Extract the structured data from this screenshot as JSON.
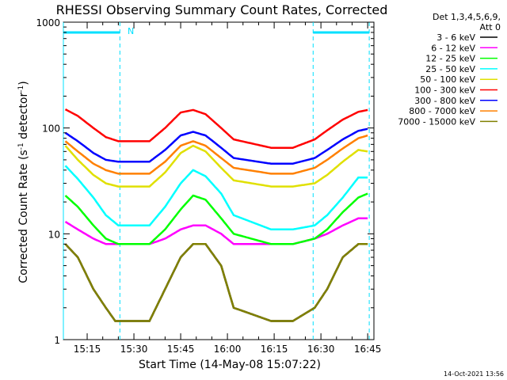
{
  "chart_data": {
    "type": "line",
    "title": "RHESSI Observing Summary Count Rates, Corrected",
    "xlabel": "Start Time (14-May-08 15:07:22)",
    "ylabel": "Corrected Count Rate (s-1 detector-1)",
    "ylabel_parts": {
      "main": "Corrected Count Rate (s",
      "sup1": "-1",
      "mid": " detector",
      "sup2": "-1",
      "end": ")"
    },
    "yscale": "log",
    "ylim": [
      1,
      1000
    ],
    "y_ticks": [
      "1",
      "10",
      "100",
      "1000"
    ],
    "xlim": [
      "15:07:22",
      "16:47:00"
    ],
    "x_ticks": [
      "15:15",
      "15:30",
      "15:45",
      "16:00",
      "16:15",
      "16:30",
      "16:45"
    ],
    "legend_header": [
      "Det 1,3,4,5,6,9,",
      "Att 0"
    ],
    "legend_placement": "right",
    "timestamp": "14-Oct-2021 13:56",
    "flag_label": "N",
    "night_markers": [
      {
        "from": "15:07:22",
        "to": "15:25:30",
        "color": "#00e0ff"
      },
      {
        "from": "16:27:30",
        "to": "16:45:30",
        "color": "#00e0ff"
      }
    ],
    "series": [
      {
        "name": "3 - 6 keV",
        "color": "#000000",
        "time": [
          "15:08",
          "15:12",
          "15:17",
          "15:21",
          "15:24",
          "15:35",
          "15:40",
          "15:45",
          "15:49",
          "15:53",
          "15:58",
          "16:02",
          "16:14",
          "16:21",
          "16:28",
          "16:32",
          "16:37",
          "16:42",
          "16:45"
        ],
        "values": [
          8,
          6,
          3,
          2,
          1.5,
          1.5,
          3,
          6,
          8,
          8,
          5,
          2,
          1.5,
          1.5,
          2,
          3,
          6,
          8,
          8
        ]
      },
      {
        "name": "6 - 12 keV",
        "color": "#ff00ff",
        "time": [
          "15:08",
          "15:12",
          "15:17",
          "15:21",
          "15:25",
          "15:35",
          "15:40",
          "15:45",
          "15:49",
          "15:53",
          "15:58",
          "16:02",
          "16:14",
          "16:21",
          "16:28",
          "16:32",
          "16:37",
          "16:42",
          "16:45"
        ],
        "values": [
          13,
          11,
          9,
          8,
          8,
          8,
          9,
          11,
          12,
          12,
          10,
          8,
          8,
          8,
          9,
          10,
          12,
          14,
          14
        ]
      },
      {
        "name": "12 - 25 keV",
        "color": "#00ff00",
        "time": [
          "15:08",
          "15:12",
          "15:17",
          "15:21",
          "15:25",
          "15:35",
          "15:40",
          "15:45",
          "15:49",
          "15:53",
          "15:58",
          "16:02",
          "16:14",
          "16:21",
          "16:28",
          "16:32",
          "16:37",
          "16:42",
          "16:45"
        ],
        "values": [
          23,
          18,
          12,
          9,
          8,
          8,
          11,
          17,
          23,
          21,
          14,
          10,
          8,
          8,
          9,
          11,
          16,
          22,
          24
        ]
      },
      {
        "name": "25 - 50 keV",
        "color": "#00ffff",
        "time": [
          "15:08",
          "15:12",
          "15:17",
          "15:21",
          "15:25",
          "15:35",
          "15:40",
          "15:45",
          "15:49",
          "15:53",
          "15:58",
          "16:02",
          "16:14",
          "16:21",
          "16:28",
          "16:32",
          "16:37",
          "16:42",
          "16:45"
        ],
        "values": [
          44,
          33,
          22,
          15,
          12,
          12,
          18,
          30,
          40,
          35,
          24,
          15,
          11,
          11,
          12,
          15,
          22,
          34,
          34
        ]
      },
      {
        "name": "50 - 100 keV",
        "color": "#e0e000",
        "time": [
          "15:08",
          "15:12",
          "15:17",
          "15:21",
          "15:25",
          "15:35",
          "15:40",
          "15:45",
          "15:49",
          "15:53",
          "15:58",
          "16:02",
          "16:14",
          "16:21",
          "16:28",
          "16:32",
          "16:37",
          "16:42",
          "16:45"
        ],
        "values": [
          68,
          50,
          36,
          30,
          28,
          28,
          38,
          58,
          68,
          60,
          42,
          32,
          28,
          28,
          30,
          36,
          48,
          62,
          60
        ]
      },
      {
        "name": "100 - 300 keV",
        "color": "#ff0000",
        "time": [
          "15:08",
          "15:12",
          "15:17",
          "15:21",
          "15:25",
          "15:35",
          "15:40",
          "15:45",
          "15:49",
          "15:53",
          "15:58",
          "16:02",
          "16:14",
          "16:21",
          "16:28",
          "16:32",
          "16:37",
          "16:42",
          "16:45"
        ],
        "values": [
          150,
          130,
          100,
          82,
          75,
          75,
          100,
          140,
          148,
          135,
          100,
          78,
          65,
          65,
          78,
          95,
          120,
          142,
          148
        ]
      },
      {
        "name": "300 - 800 keV",
        "color": "#0000ff",
        "time": [
          "15:08",
          "15:12",
          "15:17",
          "15:21",
          "15:25",
          "15:35",
          "15:40",
          "15:45",
          "15:49",
          "15:53",
          "15:58",
          "16:02",
          "16:14",
          "16:21",
          "16:28",
          "16:32",
          "16:37",
          "16:42",
          "16:45"
        ],
        "values": [
          90,
          75,
          58,
          50,
          48,
          48,
          62,
          85,
          92,
          85,
          65,
          52,
          46,
          46,
          52,
          62,
          78,
          94,
          98
        ]
      },
      {
        "name": "800 - 7000 keV",
        "color": "#ff8000",
        "time": [
          "15:08",
          "15:12",
          "15:17",
          "15:21",
          "15:25",
          "15:35",
          "15:40",
          "15:45",
          "15:49",
          "15:53",
          "15:58",
          "16:02",
          "16:14",
          "16:21",
          "16:28",
          "16:32",
          "16:37",
          "16:42",
          "16:45"
        ],
        "values": [
          75,
          60,
          46,
          40,
          37,
          37,
          48,
          68,
          75,
          68,
          52,
          42,
          37,
          37,
          42,
          50,
          64,
          80,
          85
        ]
      },
      {
        "name": "7000 - 15000 keV",
        "color": "#808000",
        "time": [
          "15:08",
          "15:12",
          "15:17",
          "15:21",
          "15:24",
          "15:35",
          "15:40",
          "15:45",
          "15:49",
          "15:53",
          "15:58",
          "16:02",
          "16:14",
          "16:21",
          "16:28",
          "16:32",
          "16:37",
          "16:42",
          "16:45"
        ],
        "values": [
          8,
          6,
          3,
          2,
          1.5,
          1.5,
          3,
          6,
          8,
          8,
          5,
          2,
          1.5,
          1.5,
          2,
          3,
          6,
          8,
          8
        ]
      }
    ]
  }
}
